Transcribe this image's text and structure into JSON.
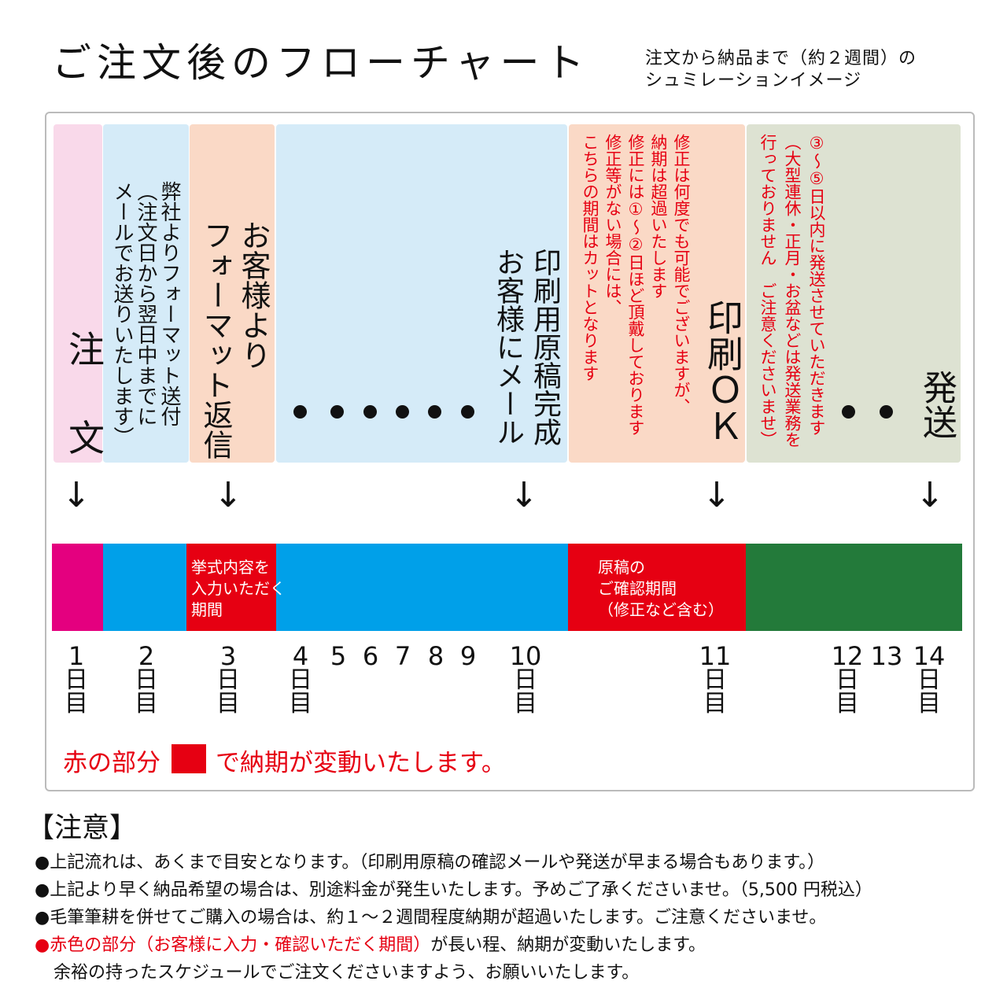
{
  "title": "ご注文後のフローチャート",
  "subtitle": [
    "注文から納品まで（約２週間）の",
    "シュミレーションイメージ"
  ],
  "colors": {
    "pink": "#f9d9ea",
    "light_blue": "#d5ebf8",
    "peach": "#fad9c6",
    "sage": "#dde2d2",
    "magenta": "#e4007f",
    "blue": "#00a0e9",
    "red": "#e60012",
    "green": "#237a3a"
  },
  "steps": {
    "order": "注 文",
    "format_send": "弊社よりフォーマット送付\n（注文日から翌日中までに\nメールでお送りいたします）",
    "format_reply": "お客様より\nフォーマット返信",
    "proof_mail": "印刷用原稿完成\nお客様にメール",
    "proof_note": "修正は何度でも可能でございますが、\n納期は超過いたします\n修正には①〜②日ほど頂戴しております\n修正等がない場合には、\nこちらの期間はカットとなります",
    "print_ok": "印刷ＯＫ",
    "ship_note": "③〜⑤日以内に発送させていただきます\n（大型連休・正月・お盆などは発送業務を\n行っておりません　ご注意くださいませ）",
    "ship": "発送"
  },
  "arrow_icon": "↓",
  "bar_labels": {
    "input": "挙式内容を\n入力いただく\n期間",
    "confirm": "原稿の\nご確認期間\n（修正など含む）"
  },
  "days": [
    {
      "n": "1",
      "u": [
        "日",
        "目"
      ]
    },
    {
      "n": "2",
      "u": [
        "日",
        "目"
      ]
    },
    {
      "n": "3",
      "u": [
        "日",
        "目"
      ]
    },
    {
      "n": "4",
      "u": [
        "日",
        "目"
      ]
    },
    {
      "n": "5",
      "u": []
    },
    {
      "n": "6",
      "u": []
    },
    {
      "n": "7",
      "u": []
    },
    {
      "n": "8",
      "u": []
    },
    {
      "n": "9",
      "u": []
    },
    {
      "n": "10",
      "u": [
        "日",
        "目"
      ]
    },
    {
      "n": "11",
      "u": [
        "日",
        "目"
      ]
    },
    {
      "n": "12",
      "u": [
        "日",
        "目"
      ]
    },
    {
      "n": "13",
      "u": []
    },
    {
      "n": "14",
      "u": [
        "日",
        "目"
      ]
    }
  ],
  "legend": {
    "pre": "赤の部分",
    "post": "で納期が変動いたします。"
  },
  "notes": {
    "heading": "【注意】",
    "items": [
      "●上記流れは、あくまで目安となります。（印刷用原稿の確認メールや発送が早まる場合もあります。）",
      "●上記より早く納品希望の場合は、別途料金が発生いたします。予めご了承くださいませ。（5,500 円税込）",
      "●毛筆筆耕を併せてご購入の場合は、約１～２週間程度納期が超過いたします。ご注意くださいませ。"
    ],
    "last_bullet": "●",
    "last_red": "赤色の部分（お客様に入力・確認いただく期間）",
    "last_rest": "が長い程、納期が変動いたします。",
    "last_line2": "余裕の持ったスケジュールでご注文くださいますよう、お願いいたします。"
  }
}
